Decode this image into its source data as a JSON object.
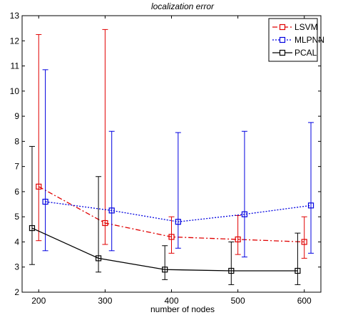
{
  "chart_data": {
    "type": "line",
    "title": "localization error",
    "xlabel": "number of nodes",
    "ylabel": "",
    "xlim": [
      175,
      625
    ],
    "ylim": [
      2,
      13
    ],
    "xticks": [
      200,
      300,
      400,
      500,
      600
    ],
    "yticks": [
      2,
      3,
      4,
      5,
      6,
      7,
      8,
      9,
      10,
      11,
      12,
      13
    ],
    "grid": false,
    "legend_position": "top-right",
    "series": [
      {
        "name": "LSVM",
        "color": "#e00000",
        "line_style": "dash-dot",
        "marker": "square",
        "points": [
          {
            "x": 200,
            "y": 6.2,
            "lower": 4.05,
            "upper": 12.25
          },
          {
            "x": 300,
            "y": 4.75,
            "lower": 3.9,
            "upper": 12.45
          },
          {
            "x": 400,
            "y": 4.2,
            "lower": 3.55,
            "upper": 5.0
          },
          {
            "x": 500,
            "y": 4.1,
            "lower": 3.5,
            "upper": 5.05
          },
          {
            "x": 600,
            "y": 4.0,
            "lower": 3.35,
            "upper": 5.0
          }
        ]
      },
      {
        "name": "MLPNN",
        "color": "#0000e0",
        "line_style": "dotted",
        "marker": "square",
        "points": [
          {
            "x": 210,
            "y": 5.6,
            "lower": 3.65,
            "upper": 10.85
          },
          {
            "x": 310,
            "y": 5.25,
            "lower": 3.65,
            "upper": 8.4
          },
          {
            "x": 410,
            "y": 4.8,
            "lower": 3.75,
            "upper": 8.35
          },
          {
            "x": 510,
            "y": 5.1,
            "lower": 3.4,
            "upper": 8.4
          },
          {
            "x": 610,
            "y": 5.45,
            "lower": 3.55,
            "upper": 8.75
          }
        ]
      },
      {
        "name": "PCAL",
        "color": "#000000",
        "line_style": "solid",
        "marker": "square",
        "points": [
          {
            "x": 190,
            "y": 4.55,
            "lower": 3.1,
            "upper": 7.8
          },
          {
            "x": 290,
            "y": 3.35,
            "lower": 2.8,
            "upper": 6.6
          },
          {
            "x": 390,
            "y": 2.9,
            "lower": 2.5,
            "upper": 3.85
          },
          {
            "x": 490,
            "y": 2.85,
            "lower": 2.3,
            "upper": 4.0
          },
          {
            "x": 590,
            "y": 2.85,
            "lower": 2.3,
            "upper": 4.35
          }
        ]
      }
    ]
  }
}
